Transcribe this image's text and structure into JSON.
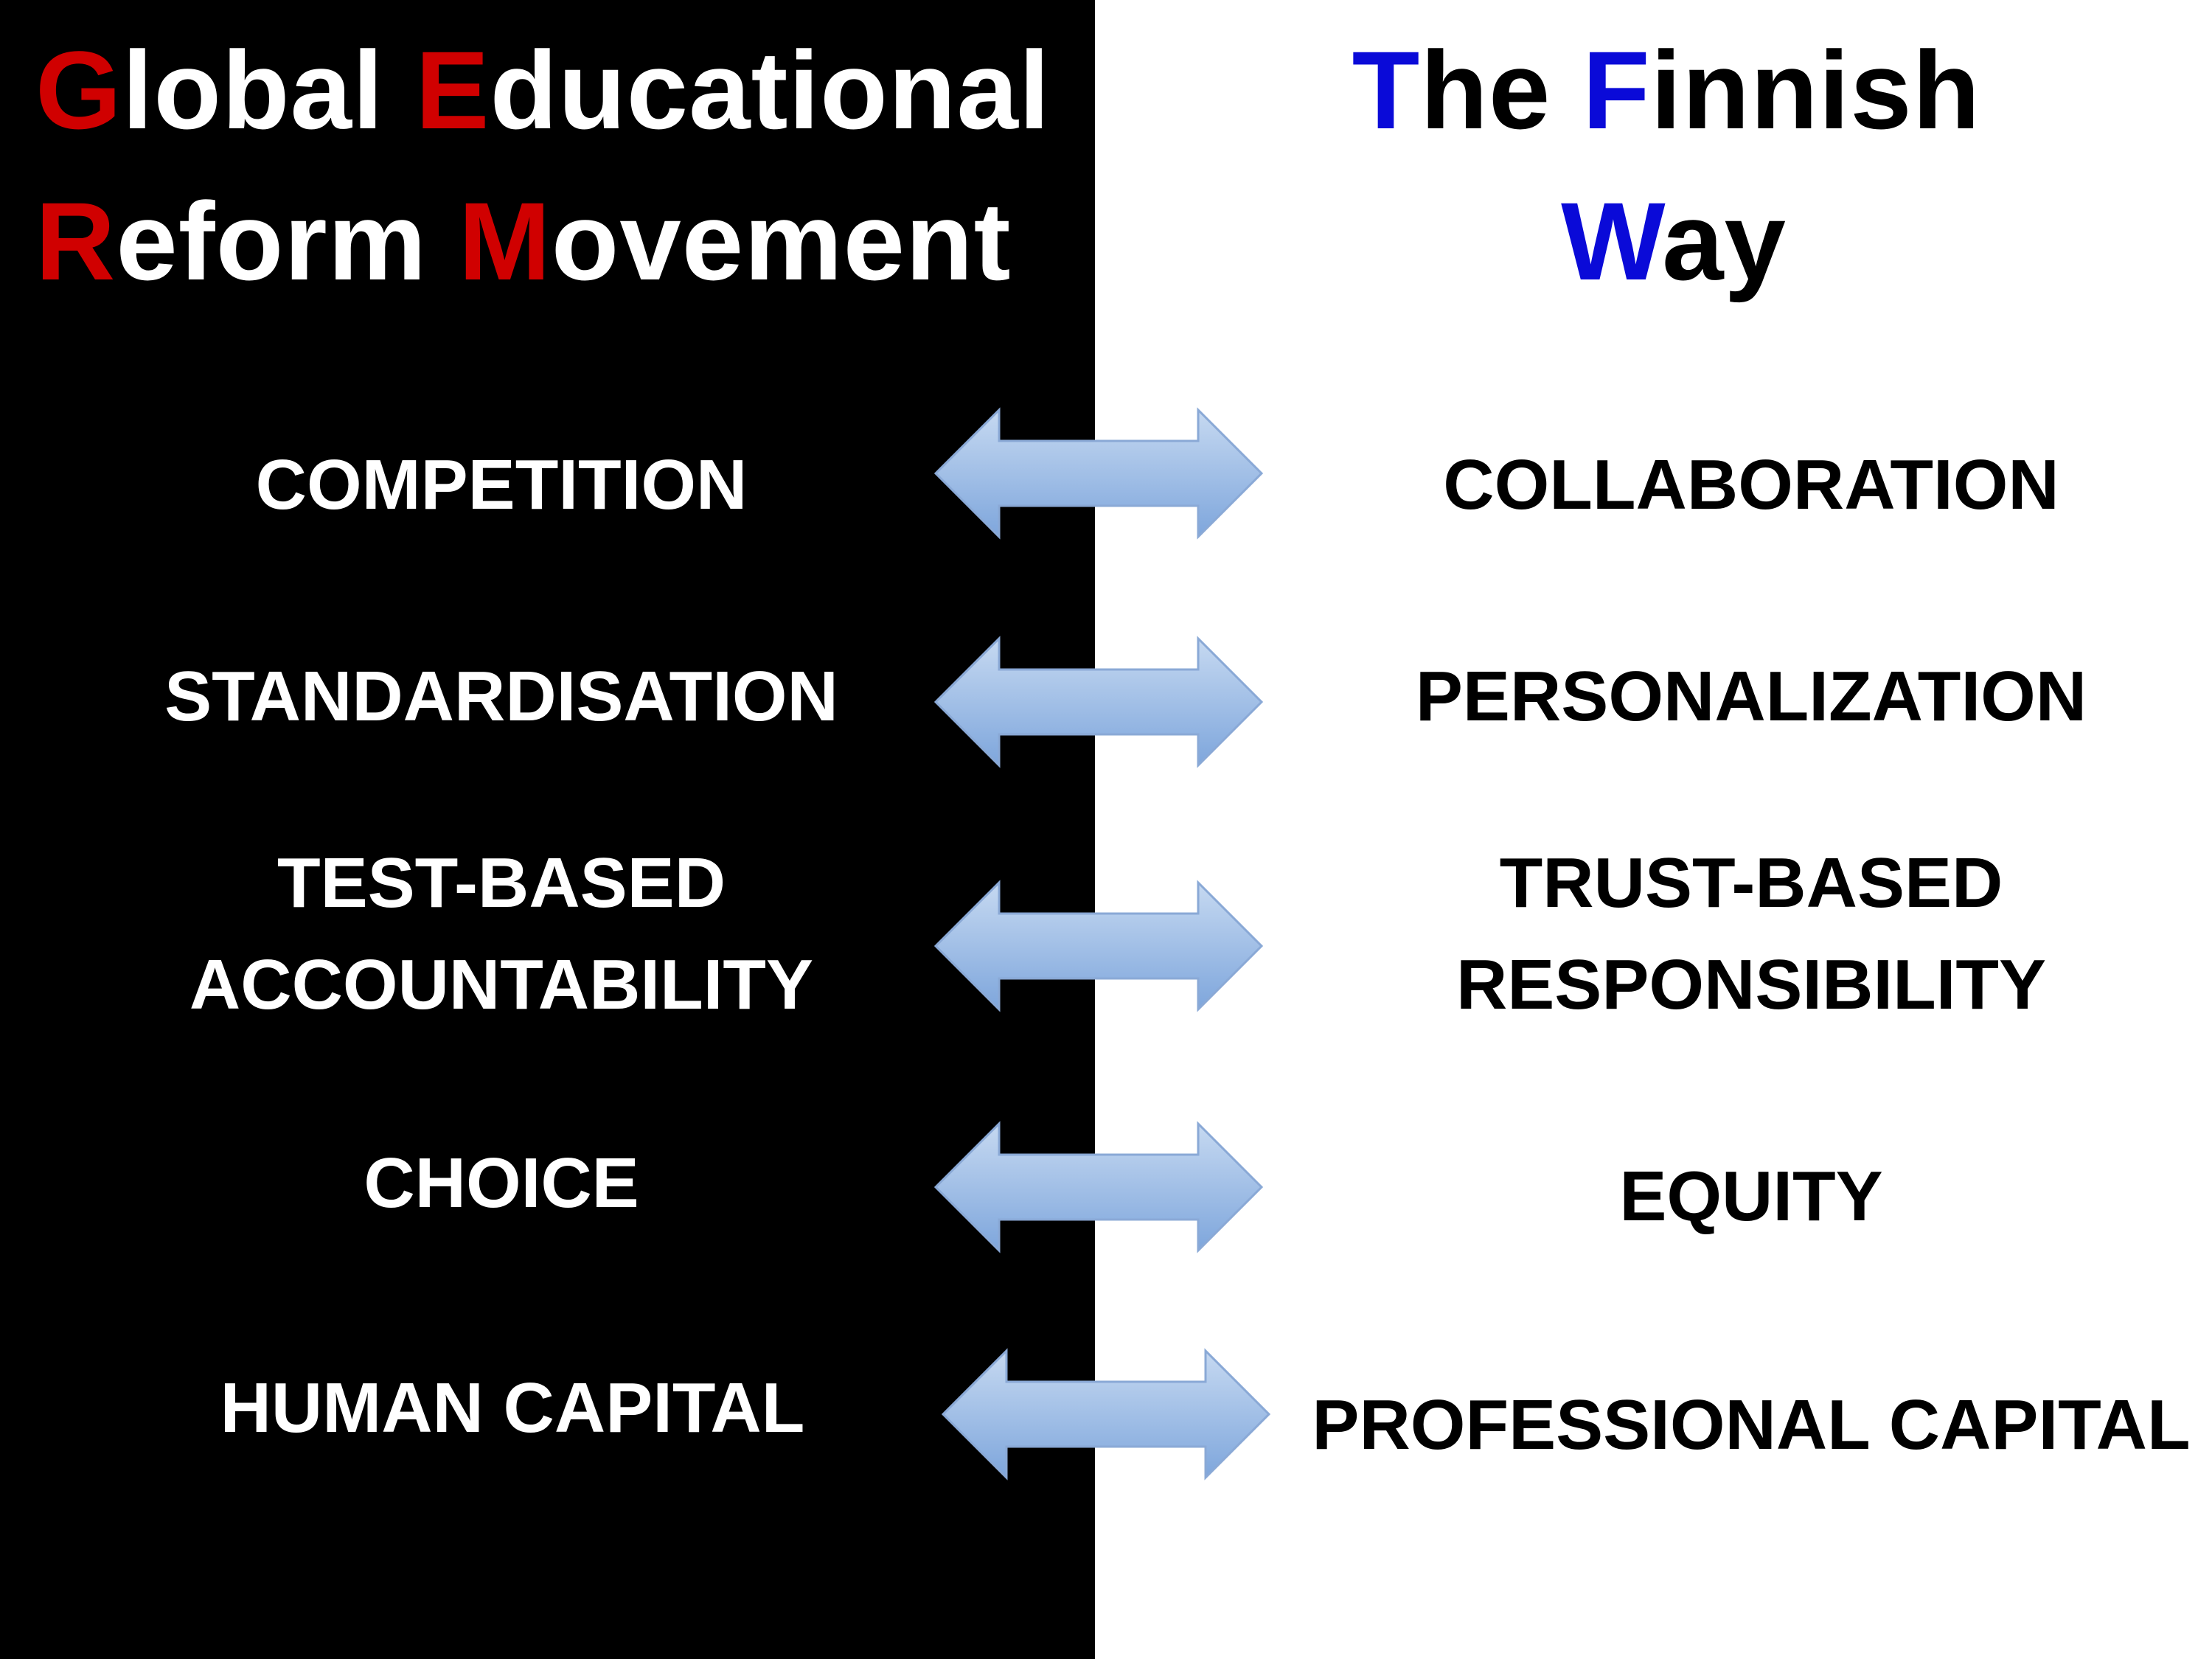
{
  "left": {
    "title": {
      "line1": [
        {
          "text": "G",
          "accent": true
        },
        {
          "text": "lobal ",
          "accent": false
        },
        {
          "text": "E",
          "accent": true
        },
        {
          "text": "ducational",
          "accent": false
        }
      ],
      "line2": [
        {
          "text": "R",
          "accent": true
        },
        {
          "text": "eform ",
          "accent": false
        },
        {
          "text": "M",
          "accent": true
        },
        {
          "text": "ovement",
          "accent": false
        }
      ]
    },
    "terms": [
      {
        "lines": [
          "COMPETITION"
        ]
      },
      {
        "lines": [
          "STANDARDISATION"
        ]
      },
      {
        "lines": [
          "TEST-BASED",
          "ACCOUNTABILITY"
        ]
      },
      {
        "lines": [
          "CHOICE"
        ]
      },
      {
        "lines": [
          "HUMAN CAPITAL"
        ]
      }
    ]
  },
  "right": {
    "title": {
      "line1": [
        {
          "text": "T",
          "accent": true
        },
        {
          "text": "he ",
          "accent": false
        },
        {
          "text": "F",
          "accent": true
        },
        {
          "text": "innish",
          "accent": false
        }
      ],
      "line2": [
        {
          "text": "W",
          "accent": true
        },
        {
          "text": "ay",
          "accent": false
        }
      ]
    },
    "terms": [
      {
        "lines": [
          "COLLABORATION"
        ]
      },
      {
        "lines": [
          "PERSONALIZATION"
        ]
      },
      {
        "lines": [
          "TRUST-BASED",
          "RESPONSIBILITY"
        ]
      },
      {
        "lines": [
          "EQUITY"
        ]
      },
      {
        "lines": [
          "PROFESSIONAL CAPITAL"
        ]
      }
    ]
  },
  "colors": {
    "left_background": "#000000",
    "right_background": "#ffffff",
    "left_accent": "#d00000",
    "right_accent": "#0a0ad8",
    "arrow_fill_light": "#c6d9f1",
    "arrow_fill_dark": "#7ea6dc",
    "arrow_stroke": "#8aa9d6"
  },
  "icons": {
    "arrow": "double-headed-arrow-icon"
  }
}
